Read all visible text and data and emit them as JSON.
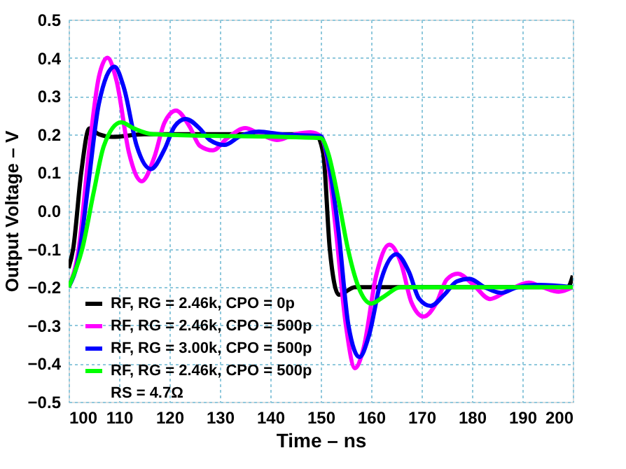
{
  "chart_data": {
    "type": "line",
    "xlabel": "Time – ns",
    "ylabel": "Output Voltage – V",
    "xlim": [
      100,
      200
    ],
    "xticks": [
      100,
      110,
      120,
      130,
      140,
      150,
      160,
      170,
      180,
      190,
      200
    ],
    "ylim": [
      -0.5,
      0.5
    ],
    "yticks": [
      -0.5,
      -0.4,
      -0.3,
      -0.2,
      -0.1,
      {
        "value": 0,
        "label": "0.0"
      },
      0.1,
      0.2,
      0.3,
      0.4,
      0.5
    ],
    "grid": true,
    "legend": "bottom left",
    "line_style": "solid",
    "marker": "none",
    "series": [
      {
        "name": "RF, RG = 2.46k, CPO = 0p",
        "color": "#000000",
        "x": [
          100,
          100.9,
          102.5,
          104.1,
          106,
          108.6,
          115,
          149,
          150.5,
          151.8,
          153.6,
          156.8,
          199,
          200
        ],
        "values": [
          -0.15,
          -0.1,
          0.1,
          0.215,
          0.2,
          0.193,
          0.2,
          0.2,
          0.15,
          -0.1,
          -0.22,
          -0.2,
          -0.2,
          -0.17
        ]
      },
      {
        "name": "RF, RG = 2.46k, CPO = 500p",
        "color": "#ff00ff",
        "x": [
          100,
          102,
          104,
          106,
          107.7,
          109.5,
          112,
          114.5,
          117,
          119,
          121.3,
          124,
          126,
          128.6,
          131.5,
          135,
          138,
          141.3,
          145,
          148,
          150,
          151.5,
          153,
          155,
          156.8,
          158.5,
          161,
          163.6,
          166,
          168,
          170.4,
          173,
          175,
          177.2,
          180,
          183.6,
          187,
          191.3,
          194,
          197.2,
          200
        ],
        "values": [
          -0.2,
          -0.1,
          0.15,
          0.35,
          0.4,
          0.34,
          0.15,
          0.077,
          0.14,
          0.23,
          0.262,
          0.22,
          0.17,
          0.158,
          0.19,
          0.216,
          0.2,
          0.185,
          0.2,
          0.205,
          0.195,
          0.12,
          -0.05,
          -0.3,
          -0.412,
          -0.36,
          -0.17,
          -0.089,
          -0.14,
          -0.24,
          -0.277,
          -0.24,
          -0.18,
          -0.165,
          -0.19,
          -0.231,
          -0.21,
          -0.188,
          -0.2,
          -0.212,
          -0.2
        ]
      },
      {
        "name": "RF, RG = 3.00k, CPO = 500p",
        "color": "#0000ff",
        "x": [
          100,
          102,
          104,
          106,
          109.1,
          111,
          113.5,
          116.3,
          119,
          121,
          123.2,
          126,
          128,
          130.9,
          134,
          137.7,
          142,
          150,
          151.5,
          153.5,
          155.5,
          157.7,
          159.5,
          162,
          165,
          167.5,
          169.5,
          171.8,
          174.5,
          177,
          179.5,
          182.5,
          185.8,
          189,
          193.3,
          200
        ],
        "values": [
          -0.2,
          -0.12,
          0.08,
          0.28,
          0.377,
          0.32,
          0.17,
          0.109,
          0.16,
          0.22,
          0.24,
          0.215,
          0.185,
          0.172,
          0.195,
          0.207,
          0.2,
          0.195,
          0.13,
          -0.05,
          -0.3,
          -0.383,
          -0.33,
          -0.18,
          -0.114,
          -0.16,
          -0.23,
          -0.249,
          -0.22,
          -0.185,
          -0.178,
          -0.2,
          -0.215,
          -0.2,
          -0.194,
          -0.2
        ]
      },
      {
        "name": "RF, RG = 2.46k, CPO = 500p\nRS = 4.7Ω",
        "color": "#00ff00",
        "x": [
          100,
          102.7,
          105,
          107,
          110.4,
          113,
          116.8,
          150,
          151.5,
          153.5,
          155.4,
          157.5,
          160,
          162.5,
          165.8,
          200
        ],
        "values": [
          -0.2,
          -0.1,
          0.05,
          0.17,
          0.231,
          0.215,
          0.2,
          0.19,
          0.15,
          0.03,
          -0.1,
          -0.2,
          -0.243,
          -0.225,
          -0.2,
          -0.2
        ]
      }
    ]
  }
}
